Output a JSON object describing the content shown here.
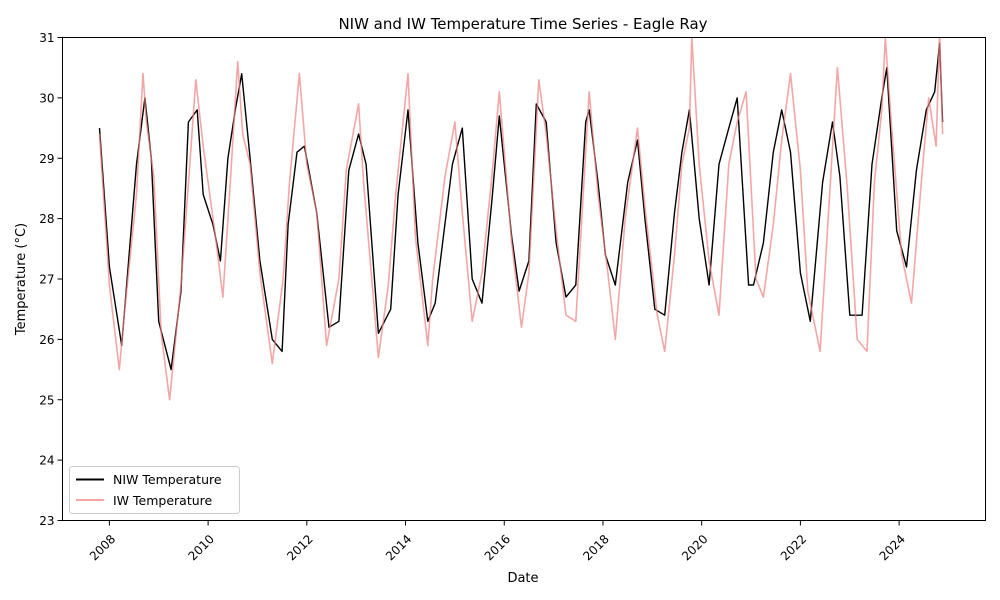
{
  "chart_data": {
    "type": "line",
    "title": "NIW and IW Temperature Time Series - Eagle Ray",
    "xlabel": "Date",
    "ylabel": "Temperature (°C)",
    "xlim": [
      2007.05,
      2025.75
    ],
    "ylim": [
      23,
      31
    ],
    "x_ticks": [
      2008,
      2010,
      2012,
      2014,
      2016,
      2018,
      2020,
      2022,
      2024
    ],
    "x_tick_labels": [
      "2008",
      "2010",
      "2012",
      "2014",
      "2016",
      "2018",
      "2020",
      "2022",
      "2024"
    ],
    "y_ticks": [
      23,
      24,
      25,
      26,
      27,
      28,
      29,
      30,
      31
    ],
    "y_tick_labels": [
      "23",
      "24",
      "25",
      "26",
      "27",
      "28",
      "29",
      "30",
      "31"
    ],
    "grid": false,
    "legend_position": "lower-left",
    "series": [
      {
        "name": "NIW Temperature",
        "color": "#000000",
        "x": [
          2007.8,
          2008.0,
          2008.25,
          2008.55,
          2008.72,
          2008.85,
          2009.0,
          2009.25,
          2009.45,
          2009.6,
          2009.78,
          2009.9,
          2010.1,
          2010.25,
          2010.4,
          2010.55,
          2010.68,
          2010.85,
          2011.05,
          2011.3,
          2011.5,
          2011.62,
          2011.8,
          2011.95,
          2012.2,
          2012.45,
          2012.65,
          2012.85,
          2013.05,
          2013.2,
          2013.45,
          2013.7,
          2013.85,
          2014.05,
          2014.25,
          2014.45,
          2014.6,
          2014.75,
          2014.95,
          2015.15,
          2015.35,
          2015.55,
          2015.75,
          2015.9,
          2016.15,
          2016.3,
          2016.5,
          2016.65,
          2016.85,
          2017.05,
          2017.25,
          2017.45,
          2017.65,
          2017.72,
          2017.9,
          2018.05,
          2018.25,
          2018.5,
          2018.7,
          2018.85,
          2019.05,
          2019.25,
          2019.45,
          2019.6,
          2019.75,
          2019.95,
          2020.15,
          2020.35,
          2020.55,
          2020.72,
          2020.95,
          2021.05,
          2021.25,
          2021.45,
          2021.62,
          2021.8,
          2022.0,
          2022.2,
          2022.45,
          2022.65,
          2022.8,
          2023.0,
          2023.25,
          2023.45,
          2023.65,
          2023.75,
          2023.95,
          2024.15,
          2024.35,
          2024.55,
          2024.72,
          2024.82,
          2024.88
        ],
        "y": [
          29.5,
          27.2,
          25.9,
          28.9,
          30.0,
          29.0,
          26.3,
          25.5,
          26.8,
          29.6,
          29.8,
          28.4,
          27.9,
          27.3,
          29.0,
          29.8,
          30.4,
          29.0,
          27.3,
          26.0,
          25.8,
          27.9,
          29.1,
          29.2,
          28.1,
          26.2,
          26.3,
          28.8,
          29.4,
          28.9,
          26.1,
          26.5,
          28.4,
          29.8,
          27.6,
          26.3,
          26.6,
          27.6,
          28.9,
          29.5,
          27.0,
          26.6,
          28.3,
          29.7,
          27.7,
          26.8,
          27.3,
          29.9,
          29.6,
          27.6,
          26.7,
          26.9,
          29.6,
          29.8,
          28.6,
          27.4,
          26.9,
          28.6,
          29.3,
          28.0,
          26.5,
          26.4,
          28.1,
          29.1,
          29.8,
          28.0,
          26.9,
          28.9,
          29.5,
          30.0,
          26.9,
          26.9,
          27.6,
          29.1,
          29.8,
          29.1,
          27.1,
          26.3,
          28.6,
          29.6,
          28.7,
          26.4,
          26.4,
          28.9,
          30.0,
          30.5,
          27.8,
          27.2,
          28.8,
          29.8,
          30.1,
          30.9,
          29.6
        ]
      },
      {
        "name": "IW Temperature",
        "color": "#f08080",
        "x": [
          2007.8,
          2008.0,
          2008.2,
          2008.3,
          2008.55,
          2008.68,
          2008.75,
          2008.9,
          2009.05,
          2009.22,
          2009.45,
          2009.62,
          2009.75,
          2009.9,
          2010.15,
          2010.3,
          2010.45,
          2010.6,
          2010.7,
          2010.85,
          2011.05,
          2011.3,
          2011.52,
          2011.65,
          2011.85,
          2012.0,
          2012.2,
          2012.4,
          2012.65,
          2012.8,
          2013.05,
          2013.15,
          2013.45,
          2013.65,
          2013.8,
          2014.05,
          2014.2,
          2014.45,
          2014.55,
          2014.8,
          2015.0,
          2015.15,
          2015.35,
          2015.55,
          2015.75,
          2015.9,
          2016.15,
          2016.35,
          2016.5,
          2016.7,
          2016.85,
          2017.05,
          2017.25,
          2017.45,
          2017.6,
          2017.72,
          2017.9,
          2018.1,
          2018.25,
          2018.45,
          2018.7,
          2018.85,
          2019.1,
          2019.25,
          2019.45,
          2019.6,
          2019.75,
          2019.8,
          2019.95,
          2020.15,
          2020.35,
          2020.55,
          2020.72,
          2020.9,
          2021.1,
          2021.25,
          2021.45,
          2021.62,
          2021.8,
          2022.0,
          2022.15,
          2022.4,
          2022.6,
          2022.75,
          2022.95,
          2023.15,
          2023.35,
          2023.5,
          2023.65,
          2023.72,
          2023.85,
          2024.05,
          2024.25,
          2024.45,
          2024.6,
          2024.75,
          2024.82,
          2024.88
        ],
        "y": [
          29.4,
          26.9,
          25.5,
          26.4,
          28.4,
          30.4,
          29.6,
          28.7,
          26.1,
          25.0,
          26.9,
          28.8,
          30.3,
          29.2,
          27.7,
          26.7,
          28.6,
          30.6,
          29.4,
          28.9,
          27.1,
          25.6,
          27.0,
          28.6,
          30.4,
          28.9,
          28.1,
          25.9,
          27.0,
          28.8,
          29.9,
          28.6,
          25.7,
          26.9,
          28.4,
          30.4,
          27.7,
          25.9,
          27.0,
          28.7,
          29.6,
          28.1,
          26.3,
          27.1,
          28.7,
          30.1,
          27.6,
          26.2,
          27.1,
          30.3,
          29.4,
          27.8,
          26.4,
          26.3,
          28.4,
          30.1,
          28.4,
          27.1,
          26.0,
          28.0,
          29.5,
          28.2,
          26.4,
          25.8,
          27.4,
          28.9,
          29.5,
          31.0,
          28.9,
          27.3,
          26.4,
          28.9,
          29.6,
          30.1,
          27.0,
          26.7,
          27.9,
          29.3,
          30.4,
          28.8,
          26.8,
          25.8,
          28.5,
          30.5,
          28.5,
          26.0,
          25.8,
          28.6,
          29.8,
          31.0,
          29.5,
          27.4,
          26.6,
          28.6,
          30.0,
          29.2,
          31.1,
          29.4
        ]
      }
    ]
  }
}
